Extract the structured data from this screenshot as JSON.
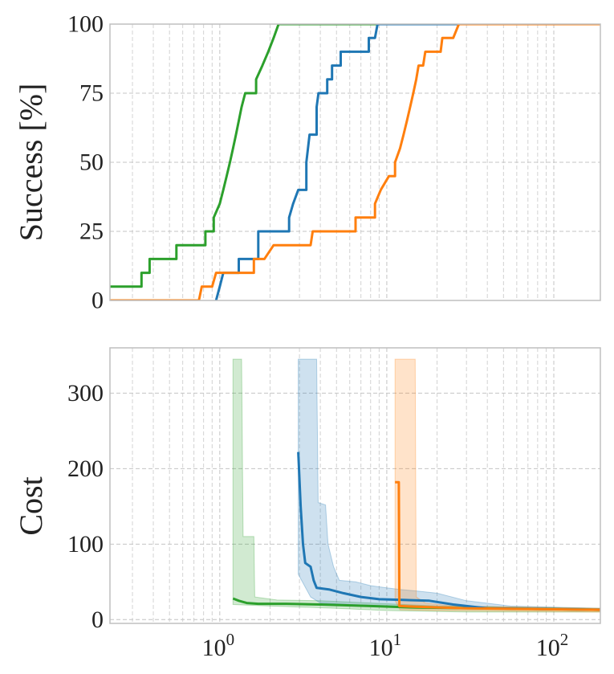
{
  "chart_data": [
    {
      "type": "line",
      "ylabel": "Success [%]",
      "xlabel": "",
      "xscale": "log",
      "xlim": [
        0.22,
        190
      ],
      "ylim": [
        0,
        100
      ],
      "yticks": [
        0,
        25,
        50,
        75,
        100
      ],
      "xticks": [
        {
          "value": 1,
          "base": "10",
          "exp": "0"
        },
        {
          "value": 10,
          "base": "10",
          "exp": "1"
        },
        {
          "value": 100,
          "base": "10",
          "exp": "2"
        }
      ],
      "show_xtick_labels": false,
      "grid": true,
      "series": [
        {
          "color": "#2ca02c",
          "points": [
            [
              0.22,
              5
            ],
            [
              0.34,
              5
            ],
            [
              0.34,
              10
            ],
            [
              0.38,
              10
            ],
            [
              0.38,
              15
            ],
            [
              0.55,
              15
            ],
            [
              0.55,
              20
            ],
            [
              0.82,
              20
            ],
            [
              0.82,
              25
            ],
            [
              0.92,
              25
            ],
            [
              0.92,
              30
            ],
            [
              1.0,
              35
            ],
            [
              1.05,
              40
            ],
            [
              1.1,
              45
            ],
            [
              1.15,
              50
            ],
            [
              1.2,
              55
            ],
            [
              1.25,
              60
            ],
            [
              1.3,
              65
            ],
            [
              1.35,
              70
            ],
            [
              1.42,
              75
            ],
            [
              1.65,
              75
            ],
            [
              1.65,
              80
            ],
            [
              1.8,
              85
            ],
            [
              1.95,
              90
            ],
            [
              2.1,
              95
            ],
            [
              2.25,
              100
            ],
            [
              190,
              100
            ]
          ]
        },
        {
          "color": "#1f77b4",
          "points": [
            [
              0.95,
              0
            ],
            [
              1.0,
              5
            ],
            [
              1.05,
              10
            ],
            [
              1.3,
              10
            ],
            [
              1.3,
              15
            ],
            [
              1.7,
              15
            ],
            [
              1.7,
              25
            ],
            [
              2.6,
              25
            ],
            [
              2.6,
              30
            ],
            [
              2.75,
              35
            ],
            [
              2.95,
              40
            ],
            [
              3.3,
              40
            ],
            [
              3.3,
              50
            ],
            [
              3.45,
              60
            ],
            [
              3.8,
              60
            ],
            [
              3.8,
              70
            ],
            [
              3.9,
              75
            ],
            [
              4.4,
              75
            ],
            [
              4.4,
              80
            ],
            [
              4.7,
              80
            ],
            [
              4.7,
              85
            ],
            [
              5.3,
              85
            ],
            [
              5.3,
              90
            ],
            [
              7.8,
              90
            ],
            [
              7.8,
              95
            ],
            [
              8.5,
              95
            ],
            [
              8.8,
              100
            ],
            [
              190,
              100
            ]
          ]
        },
        {
          "color": "#ff7f0e",
          "points": [
            [
              0.22,
              0
            ],
            [
              0.75,
              0
            ],
            [
              0.78,
              5
            ],
            [
              0.9,
              5
            ],
            [
              0.95,
              10
            ],
            [
              1.6,
              10
            ],
            [
              1.6,
              15
            ],
            [
              1.85,
              15
            ],
            [
              2.1,
              20
            ],
            [
              3.5,
              20
            ],
            [
              3.6,
              25
            ],
            [
              6.5,
              25
            ],
            [
              6.5,
              30
            ],
            [
              8.5,
              30
            ],
            [
              8.5,
              35
            ],
            [
              9.2,
              40
            ],
            [
              10.3,
              45
            ],
            [
              11.2,
              45
            ],
            [
              11.2,
              50
            ],
            [
              12,
              55
            ],
            [
              12.6,
              60
            ],
            [
              13.2,
              65
            ],
            [
              13.8,
              70
            ],
            [
              14.4,
              75
            ],
            [
              15,
              80
            ],
            [
              15.5,
              85
            ],
            [
              16.5,
              85
            ],
            [
              17,
              90
            ],
            [
              21,
              90
            ],
            [
              21.5,
              95
            ],
            [
              25,
              95
            ],
            [
              27,
              100
            ],
            [
              190,
              100
            ]
          ]
        }
      ]
    },
    {
      "type": "line",
      "ylabel": "Cost",
      "xlabel": "",
      "xscale": "log",
      "xlim": [
        0.22,
        190
      ],
      "ylim": [
        -5,
        360
      ],
      "yticks": [
        0,
        100,
        200,
        300
      ],
      "xticks": [
        {
          "value": 1,
          "base": "10",
          "exp": "0"
        },
        {
          "value": 10,
          "base": "10",
          "exp": "1"
        },
        {
          "value": 100,
          "base": "10",
          "exp": "2"
        }
      ],
      "show_xtick_labels": true,
      "grid": true,
      "series": [
        {
          "color": "#2ca02c",
          "line": [
            [
              1.2,
              28
            ],
            [
              1.3,
              25
            ],
            [
              1.45,
              22
            ],
            [
              1.7,
              21
            ],
            [
              2.5,
              21
            ],
            [
              4,
              20
            ],
            [
              8,
              18
            ],
            [
              15,
              16
            ],
            [
              40,
              15
            ],
            [
              190,
              13
            ]
          ],
          "band_upper": [
            [
              1.2,
              345
            ],
            [
              1.35,
              345
            ],
            [
              1.38,
              110
            ],
            [
              1.6,
              110
            ],
            [
              1.62,
              30
            ],
            [
              2.2,
              26
            ],
            [
              4,
              25
            ],
            [
              8,
              22
            ],
            [
              20,
              18
            ],
            [
              190,
              15
            ]
          ],
          "band_lower": [
            [
              1.2,
              20
            ],
            [
              2,
              18
            ],
            [
              5,
              15
            ],
            [
              10,
              12
            ],
            [
              30,
              10
            ],
            [
              190,
              10
            ]
          ]
        },
        {
          "color": "#1f77b4",
          "line": [
            [
              2.95,
              222
            ],
            [
              3.05,
              150
            ],
            [
              3.15,
              100
            ],
            [
              3.25,
              75
            ],
            [
              3.5,
              70
            ],
            [
              3.65,
              52
            ],
            [
              3.8,
              42
            ],
            [
              4.5,
              40
            ],
            [
              5.5,
              35
            ],
            [
              7,
              30
            ],
            [
              9,
              27
            ],
            [
              13,
              26
            ],
            [
              18,
              25
            ],
            [
              25,
              20
            ],
            [
              40,
              15
            ],
            [
              190,
              13
            ]
          ],
          "band_upper": [
            [
              2.95,
              345
            ],
            [
              3.8,
              345
            ],
            [
              3.88,
              155
            ],
            [
              4.3,
              152
            ],
            [
              4.45,
              100
            ],
            [
              4.8,
              70
            ],
            [
              5.2,
              52
            ],
            [
              6.5,
              50
            ],
            [
              8,
              45
            ],
            [
              10,
              42
            ],
            [
              12,
              40
            ],
            [
              15,
              38
            ],
            [
              20,
              35
            ],
            [
              30,
              25
            ],
            [
              55,
              18
            ],
            [
              190,
              15
            ]
          ],
          "band_lower": [
            [
              2.95,
              60
            ],
            [
              3.5,
              30
            ],
            [
              4,
              22
            ],
            [
              6,
              20
            ],
            [
              10,
              18
            ],
            [
              20,
              15
            ],
            [
              190,
              12
            ]
          ]
        },
        {
          "color": "#ff7f0e",
          "line": [
            [
              11.2,
              182
            ],
            [
              11.8,
              182
            ],
            [
              11.9,
              18
            ],
            [
              15,
              17
            ],
            [
              30,
              15
            ],
            [
              190,
              13
            ]
          ],
          "band_upper": [
            [
              11.2,
              345
            ],
            [
              14.8,
              345
            ],
            [
              15,
              30
            ],
            [
              17,
              22
            ],
            [
              25,
              18
            ],
            [
              190,
              15
            ]
          ],
          "band_lower": [
            [
              11.2,
              25
            ],
            [
              12,
              13
            ],
            [
              20,
              12
            ],
            [
              190,
              10
            ]
          ]
        }
      ]
    }
  ]
}
